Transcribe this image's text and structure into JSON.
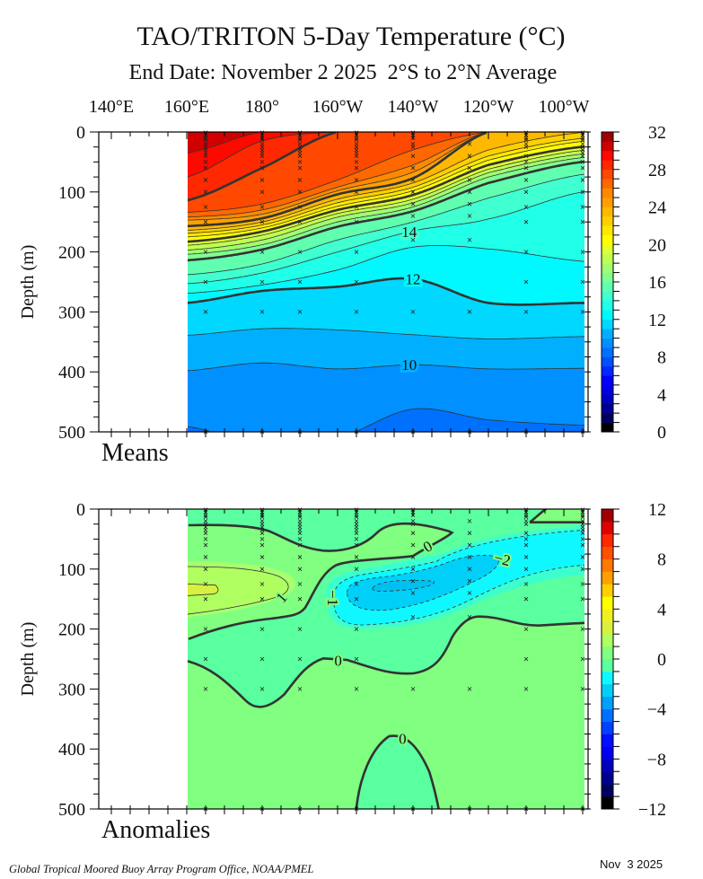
{
  "title": "TAO/TRITON 5-Day Temperature (°C)",
  "subtitle": "End Date: November 2 2025  2°S to 2°N Average",
  "footer": {
    "credit": "Global Tropical Moored Buoy Array Program Office, NOAA/PMEL",
    "date": "Nov  3 2025"
  },
  "colors": {
    "contour_line": "#333333",
    "axis": "#000000"
  },
  "chart_data": [
    {
      "type": "contour",
      "panel_label": "Means",
      "ylabel": "Depth (m)",
      "x_tick_labels": [
        "140°E",
        "160°E",
        "180°",
        "160°W",
        "140°W",
        "120°W",
        "100°W"
      ],
      "x_tick_lon_east": [
        140,
        160,
        180,
        200,
        220,
        240,
        260
      ],
      "y_ticks": [
        "0",
        "100",
        "200",
        "300",
        "400",
        "500"
      ],
      "ylim": [
        0,
        500
      ],
      "colorbar": {
        "min": 0,
        "max": 32,
        "interval": 1,
        "ticks": [
          "0",
          "4",
          "8",
          "12",
          "16",
          "20",
          "24",
          "28",
          "32"
        ],
        "band_colors": [
          "#000000",
          "#000060",
          "#000090",
          "#0000c0",
          "#0000e8",
          "#0000ff",
          "#0028ff",
          "#0050ff",
          "#0070ff",
          "#0090ff",
          "#00b0ff",
          "#00d8ff",
          "#00f8ff",
          "#20ffe8",
          "#40ffd0",
          "#60ffb0",
          "#80ff90",
          "#a0ff70",
          "#c0ff50",
          "#e0ff30",
          "#ffff00",
          "#ffe800",
          "#ffd000",
          "#ffb800",
          "#ffa000",
          "#ff8800",
          "#ff6800",
          "#ff4800",
          "#ff2800",
          "#ff0800",
          "#d00000",
          "#a00000"
        ]
      },
      "thick_levels": [
        28,
        24,
        20,
        16,
        12
      ],
      "contour_labels": [
        {
          "value": "14",
          "level": 14,
          "lon_east": 219
        },
        {
          "value": "12",
          "level": 12,
          "lon_east": 220
        },
        {
          "value": "10",
          "level": 10,
          "lon_east": 219
        }
      ],
      "isotherms": {
        "lon_east": [
          160,
          180,
          200,
          220,
          240,
          266
        ],
        "levels": [
          {
            "value": 9,
            "depth_m": [
              491,
              520,
              510,
              462,
              480,
              489
            ]
          },
          {
            "value": 10,
            "depth_m": [
              398,
              385,
              395,
              388,
              395,
              394
            ]
          },
          {
            "value": 11,
            "depth_m": [
              339,
              328,
              330,
              338,
              345,
              341
            ]
          },
          {
            "value": 12,
            "depth_m": [
              285,
              265,
              258,
              245,
              285,
              285
            ]
          },
          {
            "value": 13,
            "depth_m": [
              269,
              255,
              230,
              192,
              195,
              216
            ]
          },
          {
            "value": 14,
            "depth_m": [
              253,
              235,
              200,
              165,
              145,
              99
            ]
          },
          {
            "value": 15,
            "depth_m": [
              238,
              220,
              180,
              150,
              110,
              70
            ]
          },
          {
            "value": 16,
            "depth_m": [
              214,
              196,
              158,
              132,
              85,
              49
            ]
          },
          {
            "value": 17,
            "depth_m": [
              204,
              188,
              150,
              125,
              75,
              42
            ]
          },
          {
            "value": 18,
            "depth_m": [
              197,
              180,
              142,
              118,
              68,
              36
            ]
          },
          {
            "value": 19,
            "depth_m": [
              189,
              172,
              136,
              112,
              62,
              30
            ]
          },
          {
            "value": 20,
            "depth_m": [
              183,
              166,
              130,
              105,
              55,
              24
            ]
          },
          {
            "value": 21,
            "depth_m": [
              175,
              160,
              124,
              98,
              47,
              15
            ]
          },
          {
            "value": 22,
            "depth_m": [
              169,
              155,
              118,
              92,
              40,
              10
            ]
          },
          {
            "value": 23,
            "depth_m": [
              164,
              150,
              112,
              85,
              30,
              0
            ]
          },
          {
            "value": 24,
            "depth_m": [
              157,
              144,
              104,
              77,
              0,
              0
            ]
          },
          {
            "value": 25,
            "depth_m": [
              147,
              137,
              98,
              67,
              0,
              0
            ]
          },
          {
            "value": 26,
            "depth_m": [
              142,
              130,
              92,
              55,
              0,
              0
            ]
          },
          {
            "value": 27,
            "depth_m": [
              134,
              120,
              80,
              30,
              0,
              0
            ]
          },
          {
            "value": 28,
            "depth_m": [
              114,
              60,
              0,
              0,
              0,
              0
            ]
          },
          {
            "value": 29,
            "depth_m": [
              75,
              15,
              0,
              0,
              0,
              0
            ]
          },
          {
            "value": 30,
            "depth_m": [
              35,
              0,
              0,
              0,
              0,
              0
            ]
          }
        ]
      },
      "stations": [
        {
          "lon_east": 165,
          "depths_m": [
            1,
            5,
            10,
            13,
            20,
            25,
            30,
            35,
            40,
            50,
            60,
            80,
            100,
            125,
            150,
            200,
            250,
            300,
            500
          ]
        },
        {
          "lon_east": 180,
          "depths_m": [
            1,
            5,
            10,
            13,
            20,
            25,
            30,
            35,
            40,
            50,
            60,
            80,
            100,
            125,
            150,
            200,
            250,
            300,
            500
          ]
        },
        {
          "lon_east": 190,
          "depths_m": [
            1,
            5,
            10,
            13,
            20,
            25,
            30,
            35,
            40,
            50,
            60,
            80,
            100,
            125,
            150,
            200,
            250,
            300,
            500
          ]
        },
        {
          "lon_east": 205,
          "depths_m": [
            1,
            5,
            10,
            13,
            20,
            25,
            30,
            35,
            40,
            50,
            60,
            80,
            100,
            125,
            150,
            200,
            250,
            300,
            500
          ]
        },
        {
          "lon_east": 220,
          "depths_m": [
            1,
            5,
            10,
            20,
            25,
            40,
            60,
            80,
            100,
            120,
            140,
            180,
            300,
            500
          ]
        },
        {
          "lon_east": 235,
          "depths_m": [
            20,
            40,
            60,
            80,
            100,
            120,
            140,
            180,
            300,
            500
          ]
        },
        {
          "lon_east": 250,
          "depths_m": [
            1,
            5,
            10,
            13,
            20,
            25,
            40,
            50,
            60,
            80,
            100,
            125,
            150,
            200,
            250,
            300,
            500
          ]
        },
        {
          "lon_east": 265,
          "depths_m": [
            1,
            5,
            10,
            13,
            20,
            25,
            30,
            35,
            40,
            50,
            60,
            80,
            100,
            125,
            150,
            200,
            250,
            300,
            500
          ]
        }
      ]
    },
    {
      "type": "contour",
      "panel_label": "Anomalies",
      "ylabel": "Depth (m)",
      "y_ticks": [
        "0",
        "100",
        "200",
        "300",
        "400",
        "500"
      ],
      "ylim": [
        0,
        500
      ],
      "colorbar": {
        "min": -12,
        "max": 12,
        "interval": 1,
        "ticks": [
          "-12",
          "-8",
          "-4",
          "0",
          "4",
          "8",
          "12"
        ],
        "band_colors": [
          "#000000",
          "#000060",
          "#000090",
          "#0000c0",
          "#0000ee",
          "#0010ff",
          "#0040ff",
          "#0070ff",
          "#00a0ff",
          "#00d0f8",
          "#10f8ff",
          "#5affa0",
          "#80ff80",
          "#b0ff60",
          "#d8f040",
          "#f0f020",
          "#ffff00",
          "#ffd000",
          "#ffa000",
          "#ff7800",
          "#ff5000",
          "#ff2800",
          "#e00000",
          "#a00000"
        ]
      },
      "contour_labels": [
        {
          "value": "0"
        },
        {
          "value": "0"
        },
        {
          "value": "0"
        },
        {
          "value": "1"
        },
        {
          "value": "-1"
        },
        {
          "value": "-2"
        }
      ]
    }
  ]
}
